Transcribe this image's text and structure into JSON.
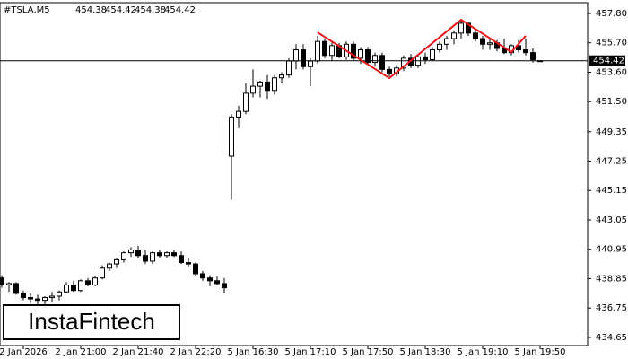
{
  "chart_data": {
    "type": "candlestick",
    "header": {
      "symbol": "#TSLA,M5",
      "values": [
        454.38,
        454.42,
        454.38,
        454.42
      ]
    },
    "watermark": "InstaFintech",
    "current_price": 454.42,
    "categories": [
      null,
      null,
      null,
      "2 Jan 2026",
      null,
      null,
      null,
      null,
      null,
      null,
      null,
      "2 Jan 21:00",
      null,
      null,
      null,
      null,
      null,
      null,
      null,
      "2 Jan 21:40",
      null,
      null,
      null,
      null,
      null,
      null,
      null,
      "2 Jan 22:20",
      null,
      null,
      null,
      null,
      null,
      null,
      null,
      "5 Jan 16:30",
      null,
      null,
      null,
      null,
      null,
      null,
      null,
      "5 Jan 17:10",
      null,
      null,
      null,
      null,
      null,
      null,
      null,
      "5 Jan 17:50",
      null,
      null,
      null,
      null,
      null,
      null,
      null,
      "5 Jan 18:30",
      null,
      null,
      null,
      null,
      null,
      null,
      null,
      "5 Jan 19:10",
      null,
      null,
      null,
      null,
      null,
      null,
      null,
      "5 Jan 19:50"
    ],
    "open": [
      438.9,
      438.4,
      438.5,
      437.8,
      437.5,
      437.4,
      437.3,
      437.5,
      437.6,
      437.9,
      438.4,
      438.0,
      438.7,
      438.4,
      438.9,
      439.6,
      439.9,
      440.2,
      440.7,
      440.9,
      440.5,
      440.1,
      440.7,
      440.5,
      440.7,
      440.5,
      440.0,
      439.9,
      439.2,
      438.9,
      438.7,
      438.5,
      447.6,
      450.4,
      450.8,
      452.1,
      452.6,
      452.9,
      452.3,
      453.2,
      453.4,
      454.4,
      455.2,
      454.0,
      454.4,
      455.8,
      454.8,
      455.5,
      454.7,
      455.6,
      454.6,
      455.2,
      454.3,
      454.8,
      453.8,
      453.5,
      453.9,
      454.6,
      454.1,
      454.7,
      454.5,
      455.2,
      455.6,
      456.0,
      456.4,
      457.1,
      456.4,
      456.0,
      455.6,
      455.7,
      455.3,
      455.0,
      455.5,
      455.2,
      455.0,
      454.38
    ],
    "high": [
      439.1,
      438.6,
      438.6,
      438.0,
      437.8,
      437.7,
      437.6,
      437.9,
      438.0,
      438.6,
      438.7,
      438.8,
      438.9,
      439.0,
      439.8,
      440.0,
      440.3,
      440.8,
      441.1,
      441.2,
      440.9,
      440.8,
      440.9,
      440.8,
      440.9,
      440.8,
      440.3,
      440.0,
      439.4,
      439.1,
      439.0,
      438.9,
      450.6,
      451.2,
      452.8,
      453.8,
      453.0,
      453.4,
      453.4,
      453.6,
      454.6,
      455.6,
      455.6,
      454.6,
      456.2,
      456.0,
      455.8,
      455.7,
      455.8,
      455.8,
      455.4,
      455.4,
      455.0,
      455.0,
      454.0,
      454.1,
      454.8,
      454.9,
      454.9,
      455.0,
      455.4,
      455.8,
      456.2,
      456.6,
      457.3,
      457.2,
      456.6,
      456.2,
      456.0,
      455.9,
      456.0,
      455.6,
      455.9,
      456.0,
      455.3,
      454.42
    ],
    "low": [
      438.2,
      437.9,
      437.7,
      437.3,
      437.1,
      437.0,
      436.9,
      437.2,
      437.3,
      437.8,
      437.9,
      437.9,
      438.3,
      438.3,
      438.8,
      439.4,
      439.6,
      440.0,
      440.4,
      440.3,
      439.9,
      439.9,
      440.3,
      440.3,
      440.4,
      439.9,
      439.7,
      439.0,
      438.7,
      438.3,
      438.4,
      437.8,
      444.5,
      449.6,
      450.6,
      451.8,
      451.8,
      451.7,
      452.0,
      452.8,
      453.2,
      453.8,
      453.8,
      452.6,
      454.2,
      454.6,
      454.4,
      454.6,
      454.5,
      454.4,
      454.2,
      454.2,
      454.0,
      453.6,
      453.3,
      453.3,
      453.7,
      453.9,
      453.9,
      454.2,
      454.4,
      455.0,
      455.2,
      455.6,
      456.0,
      456.2,
      455.8,
      455.2,
      455.2,
      455.1,
      454.9,
      454.8,
      455.0,
      454.8,
      454.3,
      454.38
    ],
    "close": [
      438.4,
      438.5,
      437.8,
      437.5,
      437.4,
      437.3,
      437.5,
      437.6,
      437.9,
      438.4,
      438.0,
      438.7,
      438.4,
      438.9,
      439.6,
      439.9,
      440.2,
      440.7,
      440.9,
      440.5,
      440.1,
      440.7,
      440.5,
      440.7,
      440.5,
      440.0,
      439.9,
      439.2,
      438.9,
      438.7,
      438.5,
      438.2,
      450.4,
      450.8,
      452.1,
      452.6,
      452.9,
      452.3,
      453.2,
      453.4,
      454.4,
      455.2,
      454.0,
      454.4,
      455.8,
      454.8,
      455.5,
      454.7,
      455.6,
      454.6,
      455.2,
      454.3,
      454.8,
      453.8,
      453.5,
      453.9,
      454.6,
      454.1,
      454.7,
      454.5,
      455.2,
      455.6,
      456.0,
      456.4,
      457.1,
      456.4,
      456.0,
      455.6,
      455.7,
      455.3,
      455.0,
      455.5,
      455.2,
      455.0,
      454.5,
      454.42
    ],
    "pattern": {
      "color": "#e8151b",
      "x": [
        44,
        54,
        64,
        71,
        73
      ],
      "y": [
        456.45,
        453.18,
        457.35,
        455.04,
        456.2
      ]
    },
    "ylim": [
      434.07,
      458.57
    ],
    "yticks": [
      {
        "value": 457.8,
        "label": "457.80"
      },
      {
        "value": 455.7,
        "label": "455.70"
      },
      {
        "value": 453.6,
        "label": "453.60"
      },
      {
        "value": 451.5,
        "label": "451.50"
      },
      449.35,
      447.25,
      445.15,
      443.05,
      440.95,
      438.85,
      436.75,
      434.65
    ]
  }
}
